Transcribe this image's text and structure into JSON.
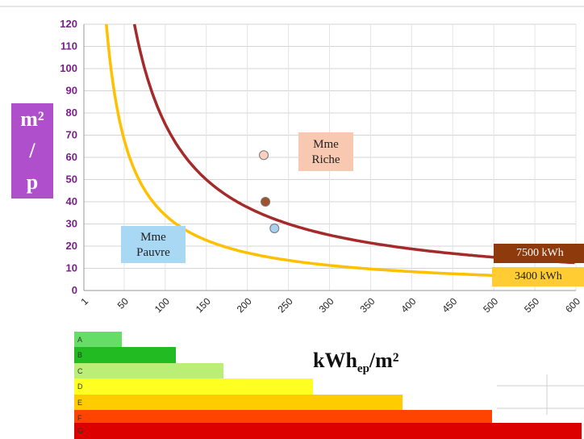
{
  "chart_data": {
    "type": "line",
    "xlabel": "kWh",
    "xlabel_sub": "ep",
    "xlabel_tail": "/m²",
    "ylabel_lines": [
      "m²",
      "/",
      "p"
    ],
    "xlim": [
      1,
      600
    ],
    "ylim": [
      0,
      120
    ],
    "x_ticks": [
      1,
      50,
      100,
      150,
      200,
      250,
      300,
      350,
      400,
      450,
      500,
      550,
      600
    ],
    "y_ticks": [
      0,
      10,
      20,
      30,
      40,
      50,
      60,
      70,
      80,
      90,
      100,
      110,
      120
    ],
    "grid": true,
    "series": [
      {
        "name": "7500 kWh",
        "color": "#a52a2a",
        "constant": 7500
      },
      {
        "name": "3400 kWh",
        "color": "#ffc000",
        "constant": 3400
      }
    ],
    "points": [
      {
        "x": 220,
        "y": 61,
        "color": "#f8d0c0"
      },
      {
        "x": 222,
        "y": 40,
        "color": "#a0522d"
      },
      {
        "x": 233,
        "y": 28,
        "color": "#a8d0f0"
      }
    ],
    "annotations": [
      {
        "key": "riche",
        "lines": [
          "Mme",
          "Riche"
        ]
      },
      {
        "key": "pauvre",
        "lines": [
          "Mme",
          "Pauvre"
        ]
      }
    ]
  },
  "dpe_scale": [
    {
      "letter": "A",
      "color": "#66dd66",
      "width": 0.08
    },
    {
      "letter": "B",
      "color": "#22bb22",
      "width": 0.17
    },
    {
      "letter": "C",
      "color": "#bbee77",
      "width": 0.25
    },
    {
      "letter": "D",
      "color": "#ffff22",
      "width": 0.4
    },
    {
      "letter": "E",
      "color": "#ffcc00",
      "width": 0.55
    },
    {
      "letter": "F",
      "color": "#ff4400",
      "width": 0.7
    },
    {
      "letter": "G",
      "color": "#dd0000",
      "width": 0.85
    }
  ]
}
